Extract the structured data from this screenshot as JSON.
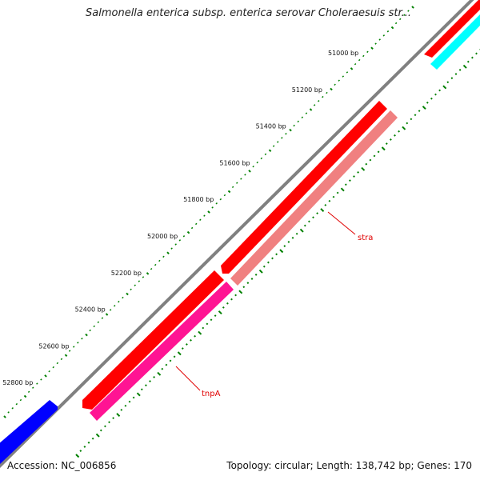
{
  "title": "Salmonella enterica subsp. enterica serovar Choleraesuis str...",
  "footer": {
    "accession": "Accession: NC_006856",
    "summary": "Topology: circular; Length: 138,742 bp; Genes: 170"
  },
  "ticks": [
    "51000 bp",
    "51200 bp",
    "51400 bp",
    "51600 bp",
    "51800 bp",
    "52000 bp",
    "52200 bp",
    "52400 bp",
    "52600 bp",
    "52800 bp"
  ],
  "genes": [
    {
      "name": "stra",
      "color": "#f08080"
    },
    {
      "name": "tnpA",
      "color": "#ff1493"
    }
  ],
  "colors": {
    "backbone": "#808080",
    "forward": "#ff0000",
    "blue": "#0000ff",
    "cyan": "#00ffff",
    "ticks": "#008000"
  }
}
